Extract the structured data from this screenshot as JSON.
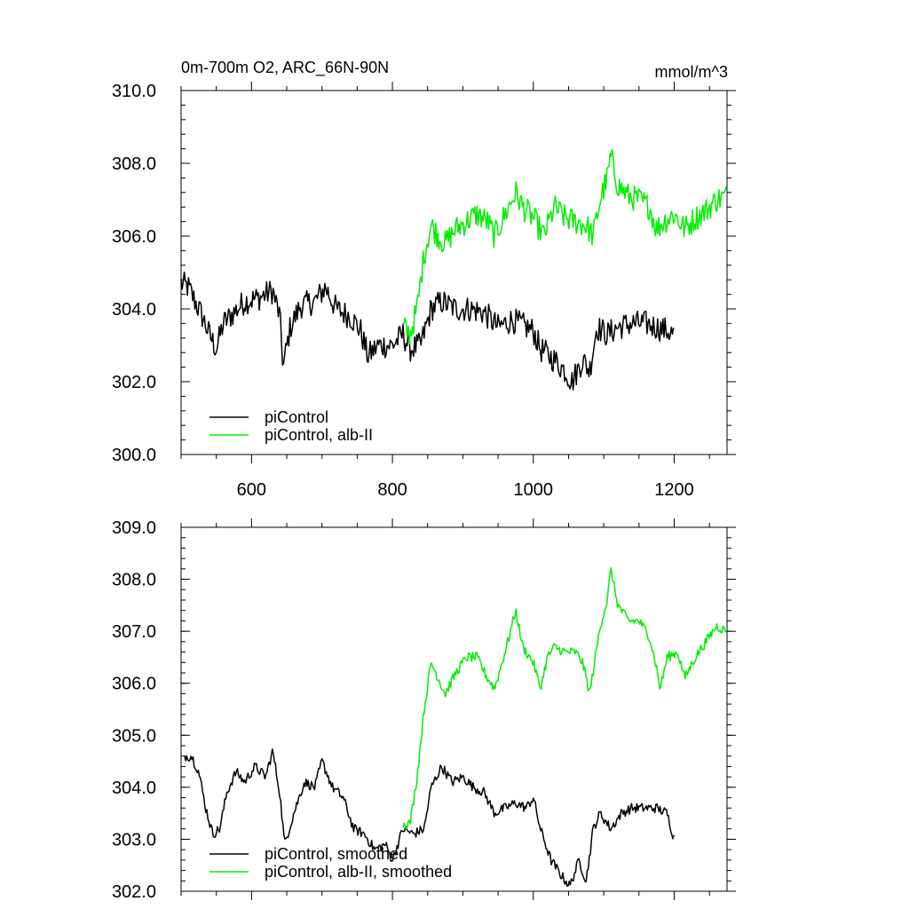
{
  "header": {
    "title": "0m-700m O2, ARC_66N-90N",
    "units": "mmol/m^3"
  },
  "colors": {
    "piControl": "#000000",
    "alb_ii": "#00ee00"
  },
  "chart_data": [
    {
      "type": "line",
      "title": "0m-700m O2, ARC_66N-90N",
      "units": "mmol/m^3",
      "xlim": [
        500,
        1275
      ],
      "ylim": [
        300.0,
        310.0
      ],
      "x_ticks": [
        600,
        800,
        1000,
        1200
      ],
      "x_tick_labels": [
        "600",
        "800",
        "1000",
        "1200"
      ],
      "y_ticks": [
        300,
        302,
        304,
        306,
        308,
        310
      ],
      "y_tick_labels": [
        "300.0",
        "302.0",
        "304.0",
        "306.0",
        "308.0",
        "310.0"
      ],
      "grid": false,
      "legend_position": "bottom-left",
      "noise": 0.45,
      "series": [
        {
          "name": "piControl",
          "color": "#000000",
          "x_range": [
            500,
            1200
          ],
          "anchors": [
            [
              500,
              304.7
            ],
            [
              510,
              304.6
            ],
            [
              520,
              304.2
            ],
            [
              530,
              303.8
            ],
            [
              540,
              303.3
            ],
            [
              550,
              302.9
            ],
            [
              560,
              303.6
            ],
            [
              575,
              303.9
            ],
            [
              590,
              304.2
            ],
            [
              610,
              304.3
            ],
            [
              630,
              304.5
            ],
            [
              640,
              303.8
            ],
            [
              645,
              302.4
            ],
            [
              655,
              303.5
            ],
            [
              670,
              304.1
            ],
            [
              690,
              304.2
            ],
            [
              705,
              304.6
            ],
            [
              720,
              304.0
            ],
            [
              740,
              303.8
            ],
            [
              755,
              303.4
            ],
            [
              765,
              302.7
            ],
            [
              780,
              303.0
            ],
            [
              800,
              303.0
            ],
            [
              815,
              303.3
            ],
            [
              825,
              302.9
            ],
            [
              840,
              303.0
            ],
            [
              855,
              304.0
            ],
            [
              870,
              304.2
            ],
            [
              890,
              304.0
            ],
            [
              910,
              304.0
            ],
            [
              930,
              303.9
            ],
            [
              950,
              303.5
            ],
            [
              970,
              303.7
            ],
            [
              990,
              303.5
            ],
            [
              1000,
              303.4
            ],
            [
              1010,
              302.9
            ],
            [
              1030,
              302.6
            ],
            [
              1045,
              302.3
            ],
            [
              1055,
              302.0
            ],
            [
              1070,
              302.6
            ],
            [
              1080,
              302.3
            ],
            [
              1090,
              303.5
            ],
            [
              1105,
              303.3
            ],
            [
              1120,
              303.5
            ],
            [
              1140,
              303.6
            ],
            [
              1160,
              303.6
            ],
            [
              1175,
              303.5
            ],
            [
              1190,
              303.4
            ],
            [
              1200,
              303.3
            ]
          ]
        },
        {
          "name": "piControl, alb-II",
          "color": "#00ee00",
          "x_range": [
            815,
            1275
          ],
          "anchors": [
            [
              815,
              303.5
            ],
            [
              825,
              303.3
            ],
            [
              835,
              304.0
            ],
            [
              845,
              305.5
            ],
            [
              855,
              306.3
            ],
            [
              865,
              306.0
            ],
            [
              875,
              305.8
            ],
            [
              890,
              306.2
            ],
            [
              905,
              306.4
            ],
            [
              920,
              306.6
            ],
            [
              935,
              306.4
            ],
            [
              945,
              306.0
            ],
            [
              960,
              306.6
            ],
            [
              975,
              307.2
            ],
            [
              985,
              306.8
            ],
            [
              1000,
              306.5
            ],
            [
              1015,
              306.0
            ],
            [
              1030,
              306.8
            ],
            [
              1045,
              306.5
            ],
            [
              1060,
              306.4
            ],
            [
              1075,
              306.3
            ],
            [
              1085,
              306.0
            ],
            [
              1095,
              307.0
            ],
            [
              1105,
              307.6
            ],
            [
              1110,
              308.2
            ],
            [
              1120,
              307.4
            ],
            [
              1135,
              307.1
            ],
            [
              1150,
              307.0
            ],
            [
              1165,
              306.8
            ],
            [
              1175,
              306.2
            ],
            [
              1185,
              306.4
            ],
            [
              1200,
              306.6
            ],
            [
              1215,
              306.2
            ],
            [
              1230,
              306.5
            ],
            [
              1245,
              306.7
            ],
            [
              1260,
              307.0
            ],
            [
              1275,
              307.1
            ]
          ]
        }
      ]
    },
    {
      "type": "line",
      "xlim": [
        500,
        1275
      ],
      "ylim": [
        302.0,
        309.0
      ],
      "x_ticks": [
        600,
        800,
        1000,
        1200
      ],
      "x_tick_labels": [],
      "y_ticks": [
        302,
        303,
        304,
        305,
        306,
        307,
        308,
        309
      ],
      "y_tick_labels": [
        "302.0",
        "303.0",
        "304.0",
        "305.0",
        "306.0",
        "307.0",
        "308.0",
        "309.0"
      ],
      "grid": false,
      "legend_position": "bottom-left",
      "noise": 0.12,
      "series": [
        {
          "name": "piControl, smoothed",
          "color": "#000000",
          "x_range": [
            505,
            1200
          ],
          "anchors": [
            [
              505,
              304.6
            ],
            [
              515,
              304.6
            ],
            [
              525,
              304.3
            ],
            [
              535,
              303.6
            ],
            [
              545,
              303.1
            ],
            [
              555,
              303.2
            ],
            [
              565,
              303.9
            ],
            [
              578,
              304.3
            ],
            [
              590,
              304.1
            ],
            [
              605,
              304.4
            ],
            [
              620,
              304.2
            ],
            [
              630,
              304.7
            ],
            [
              640,
              303.9
            ],
            [
              647,
              302.9
            ],
            [
              660,
              303.5
            ],
            [
              675,
              304.1
            ],
            [
              690,
              304.0
            ],
            [
              700,
              304.5
            ],
            [
              715,
              304.0
            ],
            [
              730,
              303.8
            ],
            [
              745,
              303.2
            ],
            [
              760,
              303.1
            ],
            [
              775,
              302.8
            ],
            [
              790,
              302.9
            ],
            [
              800,
              302.6
            ],
            [
              815,
              303.2
            ],
            [
              830,
              303.1
            ],
            [
              845,
              303.2
            ],
            [
              855,
              304.0
            ],
            [
              870,
              304.4
            ],
            [
              885,
              304.1
            ],
            [
              900,
              304.2
            ],
            [
              915,
              304.0
            ],
            [
              930,
              303.9
            ],
            [
              945,
              303.5
            ],
            [
              960,
              303.6
            ],
            [
              975,
              303.7
            ],
            [
              990,
              303.6
            ],
            [
              1000,
              303.8
            ],
            [
              1010,
              303.2
            ],
            [
              1025,
              302.6
            ],
            [
              1040,
              302.3
            ],
            [
              1052,
              302.1
            ],
            [
              1065,
              302.6
            ],
            [
              1075,
              302.2
            ],
            [
              1085,
              303.2
            ],
            [
              1095,
              303.5
            ],
            [
              1110,
              303.2
            ],
            [
              1125,
              303.5
            ],
            [
              1140,
              303.6
            ],
            [
              1160,
              303.6
            ],
            [
              1175,
              303.6
            ],
            [
              1190,
              303.5
            ],
            [
              1200,
              303.0
            ]
          ]
        },
        {
          "name": "piControl, alb-II, smoothed",
          "color": "#00ee00",
          "x_range": [
            815,
            1275
          ],
          "anchors": [
            [
              815,
              303.3
            ],
            [
              825,
              303.3
            ],
            [
              835,
              304.2
            ],
            [
              845,
              305.5
            ],
            [
              855,
              306.4
            ],
            [
              865,
              306.1
            ],
            [
              875,
              305.8
            ],
            [
              890,
              306.2
            ],
            [
              905,
              306.5
            ],
            [
              920,
              306.5
            ],
            [
              935,
              306.1
            ],
            [
              945,
              305.9
            ],
            [
              960,
              306.6
            ],
            [
              975,
              307.4
            ],
            [
              985,
              306.7
            ],
            [
              1000,
              306.4
            ],
            [
              1010,
              305.9
            ],
            [
              1020,
              306.5
            ],
            [
              1030,
              306.7
            ],
            [
              1045,
              306.6
            ],
            [
              1060,
              306.6
            ],
            [
              1070,
              306.4
            ],
            [
              1080,
              305.8
            ],
            [
              1095,
              307.1
            ],
            [
              1105,
              307.6
            ],
            [
              1110,
              308.2
            ],
            [
              1120,
              307.5
            ],
            [
              1135,
              307.2
            ],
            [
              1150,
              307.2
            ],
            [
              1165,
              306.9
            ],
            [
              1175,
              306.3
            ],
            [
              1180,
              305.9
            ],
            [
              1190,
              306.5
            ],
            [
              1205,
              306.6
            ],
            [
              1215,
              306.1
            ],
            [
              1230,
              306.5
            ],
            [
              1245,
              306.8
            ],
            [
              1260,
              307.1
            ],
            [
              1275,
              307.0
            ]
          ]
        }
      ]
    }
  ]
}
